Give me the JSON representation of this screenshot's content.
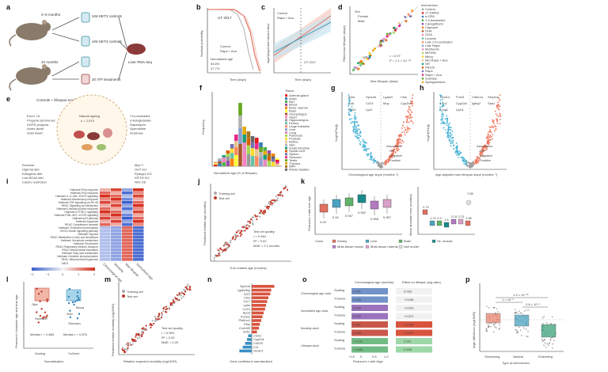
{
  "panel_letters": [
    "a",
    "b",
    "c",
    "d",
    "e",
    "f",
    "g",
    "h",
    "i",
    "j",
    "k",
    "l",
    "m",
    "n",
    "o",
    "p"
  ],
  "panel_a": {
    "age_top": "4–8 months",
    "age_bottom": "22 months",
    "box_controls": "UM-HET3 controls",
    "box_controls2": "UM-HET3 controls",
    "box_itp": "20 ITP treatments",
    "liver": "Liver RNA-seq"
  },
  "panel_b": {
    "ylabel": "Survival probability",
    "xlabel": "Time (days)",
    "tag": "UT 2017",
    "legend": [
      "Control",
      "Rapa + Aca"
    ],
    "median_label": "Normalized age",
    "pct1": "54.8%",
    "pct2": "47.7%",
    "xticks": [
      "0",
      "500",
      "1,000",
      "1,500"
    ],
    "yticks": [
      "0",
      "0.2",
      "0.4",
      "0.6",
      "0.8",
      "1.0"
    ]
  },
  "panel_c": {
    "ylabel": "log10(expected hazard rate)",
    "xlabel": "Time (days)",
    "legend": [
      "Control",
      "Rapa + Aca"
    ],
    "tag": "UT 2017",
    "xticks": [
      "0",
      "500",
      "1,000",
      "1,500"
    ]
  },
  "panel_d": {
    "ylabel": "Fitted max lifespan (days)",
    "xlabel": "Max lifespan (days)",
    "sex_title": "Sex",
    "sex": [
      "Female",
      "Male"
    ],
    "stat1": "r = 0.97",
    "stat2": "P = 1.1 × 10⁻⁶⁴",
    "intervention_title": "Intervention",
    "interventions": [
      "Control",
      "17-DMAG",
      "α-GPA",
      "1,3-butanediol",
      "Canagliflozin",
      "Captopril",
      "DHA",
      "GGA",
      "Leucine",
      "Late 17α-oestradiol",
      "Late Rapa",
      "Metformin",
      "MIF098",
      "Mitoq",
      "Mid Rapa + Aca",
      "NR",
      "PB125",
      "Rapa",
      "Rapa + Aca",
      "Sulindac",
      "Syringaresinol"
    ],
    "intervention_colors": [
      "#9e9e9e",
      "#e41a1c",
      "#377eb8",
      "#4daf4a",
      "#984ea3",
      "#ff7f00",
      "#a65628",
      "#f781bf",
      "#66c2a5",
      "#fc8d62",
      "#8da0cb",
      "#e78ac3",
      "#a6d854",
      "#ffd92f",
      "#e5c494",
      "#1b9e77",
      "#d95f02",
      "#7570b3",
      "#e7298a",
      "#66a61e",
      "#e6ab02"
    ]
  },
  "panel_e": {
    "title": "Controls + lifespan-modulating interventions",
    "n": "n = 4,538",
    "center_title": "Natural ageing",
    "center_n": "n = 2,570",
    "left_list": [
      "Ercc1⁻/Δ",
      "Progeria syndromes",
      "HGPS progeria",
      "Ames dwarf",
      "Snell dwarf"
    ],
    "right_list": [
      "17α-oestradiol",
      "α-ketoglutarate",
      "Rapamycin",
      "Spermidine",
      "Acarbose"
    ],
    "bottom_left": [
      "Exercise",
      "High-fat diet",
      "Ketogenic diet",
      "Low BCAA diet",
      "Caloric restriction"
    ],
    "bottom_right": [
      "Myc⁺/⁻",
      "GHT KO",
      "Ppargc1 KO",
      "IGF1R KO",
      "Nrf2 OE"
    ]
  },
  "panel_f": {
    "ylabel": "Frequency",
    "xlabel": "Normalized age (% of lifespan)",
    "legend_title": "Tissue",
    "tissues": [
      "Adrenal gland",
      "Aorta",
      "BAT",
      "Blood",
      "Bone marrow",
      "Brain",
      "Oesophagus",
      "Heart",
      "Hippocampus",
      "Kidney",
      "Large intestine",
      "Liver",
      "Lung",
      "Pancreas",
      "Prostate",
      "Retina",
      "Skin",
      "Small intestine",
      "Spinal cord",
      "Spleen",
      "Stomach",
      "Testis",
      "Thymus",
      "WAT",
      "Whole bladder"
    ],
    "xticks": [
      "0",
      "25",
      "50",
      "75",
      "100"
    ]
  },
  "panel_g": {
    "ylabel": "−log10(Padj)",
    "xlabel": "Chronological age slope (months⁻¹)",
    "labels": [
      "B2m",
      "Gpnmb",
      "Lgals3",
      "Ctss",
      "C4b",
      "Cd74",
      "Mup",
      "Cyp2b9",
      "Cd52",
      "Lyz2"
    ],
    "legend_title": "Association",
    "legend": [
      "NS",
      "Negative",
      "Positive"
    ]
  },
  "panel_h": {
    "ylabel": "−log10(Padj)",
    "xlabel": "Age-adjusted max lifespan slope (months⁻¹)",
    "labels": [
      "Gna14",
      "Fmo3",
      "Cdkn1a",
      "Serpina",
      "Lcn2",
      "Cyp2a4",
      "Igfbp2",
      "Saa1",
      "Cxcl1",
      "Lpin1"
    ],
    "legend_title": "Association",
    "legend": [
      "NS",
      "Negative",
      "Positive"
    ]
  },
  "panel_i": {
    "rows": [
      "Hallmark IFNα response",
      "Hallmark IFNγ response",
      "Hallmark IL-6–JAK–STAT3 signalling",
      "Hallmark inflammatory response",
      "Hallmark TNF signalling via NF-κB",
      "REAC Signalling by interleukins",
      "Hallmark Unfolded protein response",
      "Hallmark mTORC1 signalling",
      "Hallmark PI3K–AKT–mTOR signalling",
      "Hallmark p53 pathway",
      "Hallmark Apoptosis",
      "REAC Complement cascade",
      "Hallmark Cholesterol homeostasis",
      "KEGG Insulin signalling pathway",
      "Hallmark Hypoxia",
      "REAC Metabolism of AAs and derivatives",
      "Hallmark Xenobiotic metabolism",
      "Hallmark Peroxisome",
      "REAC Respiratory electron transport",
      "REAC Mitochondrial translation",
      "Hallmark Fatty acid metabolism",
      "Hallmark Oxidative phosphorylation",
      "REAC Mitochondrial biogenesis"
    ],
    "cols": [
      "Chronological age",
      "Mortality",
      "Max lifespan",
      "Normalized age"
    ],
    "nes_label": "NES",
    "nes_ticks": [
      "−2",
      "−1",
      "0",
      "1",
      "2"
    ]
  },
  "panel_j": {
    "ylabel": "Predicted relative age (months)",
    "xlabel": "True relative age (months)",
    "legend": [
      "Training set",
      "Test set"
    ],
    "quality_title": "Test set quality:",
    "r": "r = 0.964",
    "r2": "R² = 0.92",
    "mae": "MAE = 2.1 months",
    "xticks": [
      "−20",
      "−10",
      "0",
      "10",
      "20"
    ]
  },
  "panel_k": {
    "ylabel": "Pearson's r with true age",
    "ylabel2": "Mean absolute error (months)",
    "values": [
      "0.93",
      "0.94",
      "0.947",
      "0.952",
      "0.958",
      "0.957"
    ],
    "mae_values": [
      "2.74",
      "1.74",
      "1.9",
      "1.5",
      "2.01",
      "2.21",
      "1.96"
    ],
    "null_value": "7.89",
    "legend_title": "Clock",
    "legend": [
      "Kidney",
      "Liver",
      "Brain",
      "Sk. muscle",
      "Multi-tissue mouse",
      "Multi-tissue rodents",
      "Null model"
    ]
  },
  "panel_l": {
    "ylabel": "Pearson's r between age and true age",
    "xlabel": "Normalization",
    "xticks": [
      "Scaling",
      "YuGene"
    ],
    "labels": [
      "Skin",
      "Blood",
      "Skin",
      "Stomach",
      "Stomach"
    ],
    "median1": "Median r = 0.883",
    "median2": "Median r = 0.876"
  },
  "panel_m": {
    "ylabel": "Predicted relative mortality (log10HR)",
    "xlabel": "Relative expected mortality (log10HR)",
    "legend": [
      "Training set",
      "Test set"
    ],
    "quality_title": "Test set quality:",
    "r": "r = 0.964",
    "r2": "R² = 0.92",
    "mae": "MAE = 0.25"
  },
  "panel_n": {
    "genes": [
      "Gpnmb",
      "Lgals3bp",
      "Lyz2",
      "Ctss",
      "Ccr7",
      "Ly6e",
      "Cd74",
      "Apod",
      "Pcolce",
      "Plekho1",
      "Plau",
      "Creb3l3",
      "Sdhc",
      "Cisd1",
      "Cyp2d1",
      "Cd209",
      "Cr2",
      "Gna14"
    ],
    "values": [
      0.95,
      0.82,
      0.78,
      0.7,
      0.65,
      0.6,
      0.56,
      0.5,
      0.45,
      0.4,
      0.34,
      0.3,
      0.22,
      -0.15,
      -0.2,
      -0.28,
      -0.38,
      -0.52
    ],
    "xlabel": "Gene coefficient, standardized"
  },
  "panel_o": {
    "col1_title": "Chronological age (months)",
    "col2_title": "Effect on lifespan (log-ratio)",
    "groups": [
      "Chronological age clock",
      "Normalized age clock",
      "Mortality clock",
      "Lifespan clock"
    ],
    "rows": [
      {
        "norm": "Scaling",
        "v1": "0.931",
        "v2": "0.033"
      },
      {
        "norm": "YuGene",
        "v1": "0.933",
        "v2": "−0.036"
      },
      {
        "norm": "Scaling",
        "v1": "0.938",
        "v2": "−0.003"
      },
      {
        "norm": "YuGene",
        "v1": "0.933",
        "v2": "−0.072"
      },
      {
        "norm": "Scaling",
        "v1": "0.841",
        "v2": "−0.466"
      },
      {
        "norm": "YuGene",
        "v1": "0.846",
        "v2": "−0.507"
      },
      {
        "norm": "Scaling",
        "v1": "−0.122",
        "v2": "0.511"
      },
      {
        "norm": "YuGene",
        "v1": "−0.096",
        "v2": "0.535"
      }
    ],
    "xlabel": "Pearson's r with tAge",
    "xticks": [
      "−0.5",
      "0",
      "0.5",
      "1.0"
    ]
  },
  "panel_p": {
    "ylabel": "tAge difference (log10HR)",
    "xlabel": "Type of intervention",
    "xticks": [
      "Shortening",
      "Neutral",
      "Extending"
    ],
    "p1": "1.3 × 10⁻¹⁵",
    "p2": "1 × 10⁻⁵",
    "p3": "2.8 × 10⁻⁶"
  }
}
